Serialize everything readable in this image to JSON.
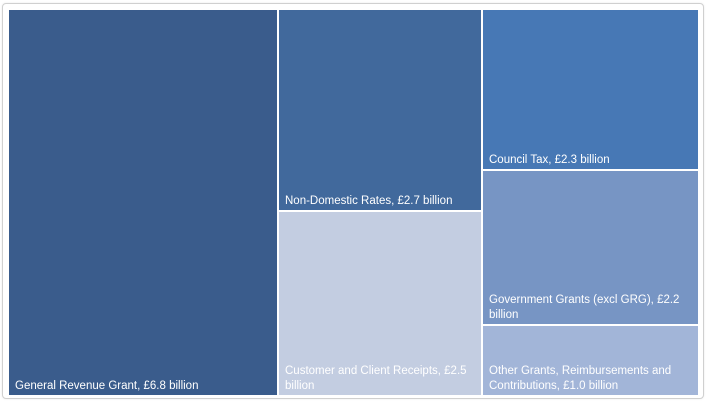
{
  "chart_data": {
    "type": "treemap",
    "items": [
      {
        "label": "General Revenue Grant, £6.8 billion",
        "value": 6.8,
        "color": "#3a5c8c"
      },
      {
        "label": "Non-Domestic Rates, £2.7 billion",
        "value": 2.7,
        "color": "#41699c"
      },
      {
        "label": "Customer and Client Receipts, £2.5 billion",
        "value": 2.5,
        "color": "#c3cde1"
      },
      {
        "label": "Council Tax, £2.3 billion",
        "value": 2.3,
        "color": "#4778b5"
      },
      {
        "label": "Government Grants (excl GRG), £2.2 billion",
        "value": 2.2,
        "color": "#7795c4"
      },
      {
        "label": "Other Grants, Reimbursements and Contributions, £1.0 billion",
        "value": 1.0,
        "color": "#a2b5d8"
      }
    ]
  }
}
